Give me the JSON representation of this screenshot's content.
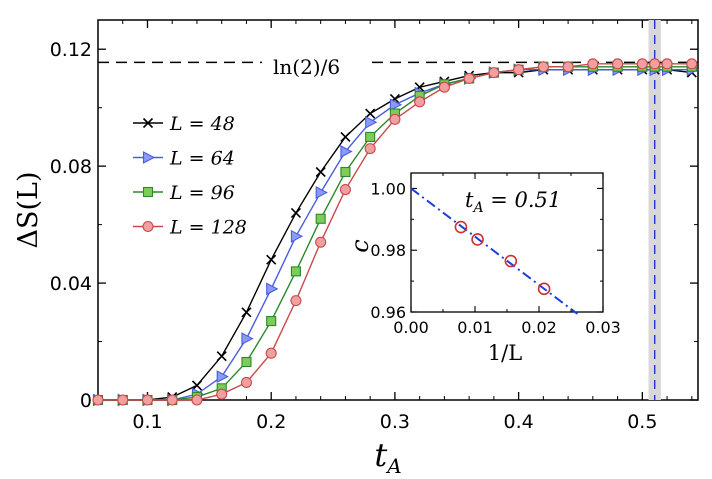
{
  "chart_data": [
    {
      "type": "line",
      "title": "",
      "xlabel": "t_A",
      "xlabel_main": "t",
      "xlabel_sub": "A",
      "ylabel": "ΔS(L)",
      "xlim": [
        0.06,
        0.545
      ],
      "ylim": [
        0,
        0.13
      ],
      "xticks": [
        0.1,
        0.2,
        0.3,
        0.4,
        0.5
      ],
      "xtick_labels": [
        "0.1",
        "0.2",
        "0.3",
        "0.4",
        "0.5"
      ],
      "yticks": [
        0,
        0.04,
        0.08,
        0.12
      ],
      "ytick_labels": [
        "0",
        "0.04",
        "0.08",
        "0.12"
      ],
      "reference_line": {
        "value": 0.1155,
        "label": "ln(2)/6",
        "style": "dashed"
      },
      "critical_line": {
        "x": 0.51,
        "band": [
          0.505,
          0.515
        ],
        "color": "#2233cc"
      },
      "legend_position": "upper-left",
      "series": [
        {
          "name": "L = 48",
          "label_var": "L",
          "label_val": "48",
          "marker": "x",
          "color": "#000000",
          "fill": "#000000",
          "x": [
            0.06,
            0.08,
            0.1,
            0.12,
            0.14,
            0.16,
            0.18,
            0.2,
            0.22,
            0.24,
            0.26,
            0.28,
            0.3,
            0.32,
            0.34,
            0.36,
            0.38,
            0.4,
            0.42,
            0.44,
            0.46,
            0.48,
            0.5,
            0.51,
            0.52,
            0.54
          ],
          "y": [
            0.0,
            0.0,
            0.0,
            0.001,
            0.005,
            0.015,
            0.03,
            0.048,
            0.064,
            0.078,
            0.09,
            0.098,
            0.103,
            0.107,
            0.109,
            0.111,
            0.112,
            0.112,
            0.113,
            0.113,
            0.113,
            0.113,
            0.113,
            0.113,
            0.113,
            0.112
          ]
        },
        {
          "name": "L = 64",
          "label_var": "L",
          "label_val": "64",
          "marker": "triangle-right",
          "color": "#4a5ce0",
          "fill": "#8a9bf5",
          "x": [
            0.06,
            0.08,
            0.1,
            0.12,
            0.14,
            0.16,
            0.18,
            0.2,
            0.22,
            0.24,
            0.26,
            0.28,
            0.3,
            0.32,
            0.34,
            0.36,
            0.38,
            0.4,
            0.42,
            0.44,
            0.46,
            0.48,
            0.5,
            0.51,
            0.52,
            0.54
          ],
          "y": [
            0.0,
            0.0,
            0.0,
            0.0,
            0.002,
            0.008,
            0.021,
            0.038,
            0.056,
            0.071,
            0.085,
            0.095,
            0.101,
            0.105,
            0.108,
            0.11,
            0.112,
            0.113,
            0.113,
            0.113,
            0.113,
            0.113,
            0.113,
            0.113,
            0.113,
            0.113
          ]
        },
        {
          "name": "L = 96",
          "label_var": "L",
          "label_val": "96",
          "marker": "square",
          "color": "#2a8a2a",
          "fill": "#7ecb5a",
          "x": [
            0.06,
            0.08,
            0.1,
            0.12,
            0.14,
            0.16,
            0.18,
            0.2,
            0.22,
            0.24,
            0.26,
            0.28,
            0.3,
            0.32,
            0.34,
            0.36,
            0.38,
            0.4,
            0.42,
            0.44,
            0.46,
            0.48,
            0.5,
            0.51,
            0.52,
            0.54
          ],
          "y": [
            0.0,
            0.0,
            0.0,
            0.0,
            0.001,
            0.004,
            0.013,
            0.027,
            0.044,
            0.062,
            0.078,
            0.09,
            0.098,
            0.104,
            0.108,
            0.11,
            0.112,
            0.113,
            0.114,
            0.114,
            0.114,
            0.114,
            0.114,
            0.114,
            0.114,
            0.114
          ]
        },
        {
          "name": "L = 128",
          "label_var": "L",
          "label_val": "128",
          "marker": "circle",
          "color": "#c84a4a",
          "fill": "#f0a0a0",
          "x": [
            0.06,
            0.08,
            0.1,
            0.12,
            0.14,
            0.16,
            0.18,
            0.2,
            0.22,
            0.24,
            0.26,
            0.28,
            0.3,
            0.32,
            0.34,
            0.36,
            0.38,
            0.4,
            0.42,
            0.44,
            0.46,
            0.48,
            0.5,
            0.51,
            0.52,
            0.54
          ],
          "y": [
            0.0,
            0.0,
            0.0,
            0.0,
            0.0,
            0.002,
            0.006,
            0.016,
            0.034,
            0.054,
            0.072,
            0.086,
            0.096,
            0.102,
            0.107,
            0.11,
            0.112,
            0.113,
            0.114,
            0.114,
            0.115,
            0.115,
            0.115,
            0.115,
            0.115,
            0.115
          ]
        }
      ]
    },
    {
      "type": "scatter",
      "title": "t_A = 0.51",
      "title_main": "t",
      "title_sub": "A",
      "title_eq": " = 0.51",
      "xlabel": "1/L",
      "ylabel": "c",
      "xlim": [
        0,
        0.03
      ],
      "ylim": [
        0.96,
        1.005
      ],
      "xticks": [
        0,
        0.01,
        0.02,
        0.03
      ],
      "xtick_labels": [
        "0.00",
        "0.01",
        "0.02",
        "0.03"
      ],
      "yticks": [
        0.96,
        0.98,
        1.0
      ],
      "ytick_labels": [
        "0.96",
        "0.98",
        "1.00"
      ],
      "points": {
        "x": [
          0.0078,
          0.0104,
          0.0156,
          0.0208
        ],
        "y": [
          0.9875,
          0.9835,
          0.9765,
          0.9675
        ],
        "marker": "open-circle",
        "color": "#d03030"
      },
      "fit": {
        "style": "dash-dot",
        "color": "#1a3ce0",
        "x": [
          0.0,
          0.026
        ],
        "y": [
          1.0,
          0.9594
        ]
      }
    }
  ]
}
